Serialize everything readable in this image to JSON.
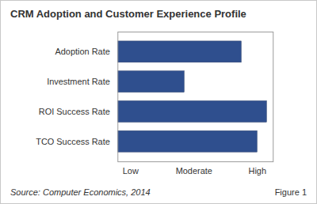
{
  "chart_data": {
    "type": "bar",
    "orientation": "horizontal",
    "title": "CRM Adoption and Customer Experience Profile",
    "categories": [
      "Adoption Rate",
      "Investment Rate",
      "ROI Success Rate",
      "TCO Success Rate"
    ],
    "values": [
      2.75,
      1.85,
      3.15,
      3.0
    ],
    "color": "#2f4f8e",
    "xlim": [
      0.8,
      3.25
    ],
    "xticks": [
      {
        "value": 1,
        "label": "Low"
      },
      {
        "value": 2,
        "label": "Moderate"
      },
      {
        "value": 3,
        "label": "High"
      }
    ],
    "grid": false,
    "source": "Source: Computer Economics, 2014",
    "note": "Figure 1"
  }
}
